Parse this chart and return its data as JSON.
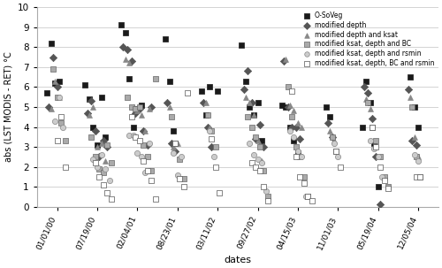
{
  "title": "",
  "xlabel": "dates",
  "ylabel": "abs (LST MODIS - RET) °C",
  "ylim": [
    0,
    10
  ],
  "xlim": [
    0,
    10
  ],
  "xtick_labels": [
    "01/01/00",
    "07/19/00",
    "02/04/01",
    "08/23/01",
    "03/11/02",
    "09/27/02",
    "04/15/03",
    "11/01/03",
    "05/19/04",
    "12/05/04"
  ],
  "xtick_positions": [
    0.5,
    1.5,
    2.5,
    3.5,
    4.5,
    5.5,
    6.5,
    7.5,
    8.5,
    9.5
  ],
  "ytick_positions": [
    0,
    1,
    2,
    3,
    4,
    5,
    6,
    7,
    8,
    9,
    10
  ],
  "series": [
    {
      "name": "O-SoVeg",
      "marker": "s",
      "color": "#1a1a1a",
      "edgecolor": "#1a1a1a",
      "size": 18,
      "data": [
        [
          0.25,
          5.7
        ],
        [
          0.35,
          8.2
        ],
        [
          0.45,
          6.2
        ],
        [
          0.55,
          6.3
        ],
        [
          1.2,
          6.1
        ],
        [
          1.3,
          5.4
        ],
        [
          1.4,
          4.0
        ],
        [
          1.5,
          3.1
        ],
        [
          1.6,
          5.5
        ],
        [
          1.7,
          3.5
        ],
        [
          2.1,
          9.1
        ],
        [
          2.2,
          8.7
        ],
        [
          2.3,
          6.4
        ],
        [
          2.4,
          4.0
        ],
        [
          2.5,
          4.9
        ],
        [
          2.6,
          5.1
        ],
        [
          3.2,
          8.4
        ],
        [
          3.3,
          6.3
        ],
        [
          3.4,
          3.8
        ],
        [
          4.1,
          5.8
        ],
        [
          4.2,
          4.6
        ],
        [
          4.3,
          6.0
        ],
        [
          4.5,
          5.8
        ],
        [
          5.1,
          8.1
        ],
        [
          5.2,
          6.3
        ],
        [
          5.3,
          5.0
        ],
        [
          5.4,
          4.6
        ],
        [
          5.5,
          5.2
        ],
        [
          5.6,
          3.3
        ],
        [
          6.1,
          5.1
        ],
        [
          6.2,
          5.0
        ],
        [
          6.3,
          4.0
        ],
        [
          6.4,
          3.3
        ],
        [
          6.5,
          2.7
        ],
        [
          7.2,
          5.0
        ],
        [
          7.3,
          4.5
        ],
        [
          8.1,
          4.0
        ],
        [
          8.2,
          6.3
        ],
        [
          8.3,
          5.2
        ],
        [
          8.4,
          3.2
        ],
        [
          8.5,
          1.0
        ],
        [
          9.3,
          6.5
        ],
        [
          9.4,
          5.0
        ],
        [
          9.5,
          4.0
        ]
      ]
    },
    {
      "name": "modified depth",
      "marker": "D",
      "color": "#555555",
      "edgecolor": "#555555",
      "size": 18,
      "data": [
        [
          0.3,
          5.0
        ],
        [
          0.4,
          7.5
        ],
        [
          0.5,
          6.0
        ],
        [
          1.25,
          4.7
        ],
        [
          1.35,
          5.3
        ],
        [
          1.45,
          3.8
        ],
        [
          1.55,
          2.5
        ],
        [
          1.65,
          3.3
        ],
        [
          1.75,
          3.0
        ],
        [
          2.15,
          8.0
        ],
        [
          2.25,
          7.9
        ],
        [
          2.35,
          7.3
        ],
        [
          2.45,
          4.7
        ],
        [
          2.55,
          4.9
        ],
        [
          2.65,
          3.8
        ],
        [
          2.75,
          3.1
        ],
        [
          2.85,
          5.0
        ],
        [
          3.25,
          5.2
        ],
        [
          3.35,
          3.2
        ],
        [
          3.45,
          2.8
        ],
        [
          4.15,
          5.2
        ],
        [
          4.25,
          4.0
        ],
        [
          4.35,
          3.0
        ],
        [
          5.15,
          5.9
        ],
        [
          5.25,
          6.8
        ],
        [
          5.35,
          5.2
        ],
        [
          5.45,
          3.4
        ],
        [
          5.55,
          4.1
        ],
        [
          5.65,
          3.0
        ],
        [
          6.15,
          7.3
        ],
        [
          6.25,
          5.0
        ],
        [
          6.35,
          4.0
        ],
        [
          6.45,
          4.0
        ],
        [
          6.55,
          3.4
        ],
        [
          7.25,
          4.2
        ],
        [
          7.35,
          3.5
        ],
        [
          8.15,
          6.0
        ],
        [
          8.25,
          5.7
        ],
        [
          8.35,
          4.4
        ],
        [
          8.45,
          2.5
        ],
        [
          8.55,
          0.1
        ],
        [
          9.25,
          5.9
        ],
        [
          9.35,
          3.3
        ],
        [
          9.45,
          3.1
        ]
      ]
    },
    {
      "name": "modified depth and ksat",
      "marker": "^",
      "color": "#888888",
      "edgecolor": "#888888",
      "size": 18,
      "data": [
        [
          0.35,
          4.9
        ],
        [
          0.45,
          6.3
        ],
        [
          0.55,
          5.5
        ],
        [
          1.3,
          4.6
        ],
        [
          1.4,
          5.0
        ],
        [
          1.5,
          3.0
        ],
        [
          1.6,
          3.2
        ],
        [
          1.7,
          2.3
        ],
        [
          2.2,
          7.4
        ],
        [
          2.3,
          7.2
        ],
        [
          2.4,
          5.0
        ],
        [
          2.5,
          4.8
        ],
        [
          2.6,
          4.6
        ],
        [
          2.7,
          3.8
        ],
        [
          2.8,
          4.9
        ],
        [
          3.3,
          5.0
        ],
        [
          3.4,
          3.0
        ],
        [
          3.5,
          3.2
        ],
        [
          4.2,
          5.2
        ],
        [
          4.3,
          4.0
        ],
        [
          5.2,
          5.5
        ],
        [
          5.3,
          5.2
        ],
        [
          5.4,
          4.6
        ],
        [
          5.5,
          3.3
        ],
        [
          5.6,
          2.3
        ],
        [
          6.2,
          7.4
        ],
        [
          6.3,
          5.1
        ],
        [
          6.4,
          4.8
        ],
        [
          6.5,
          4.2
        ],
        [
          6.6,
          4.0
        ],
        [
          7.3,
          3.8
        ],
        [
          7.4,
          3.3
        ],
        [
          8.2,
          5.4
        ],
        [
          8.3,
          4.9
        ],
        [
          8.4,
          3.0
        ],
        [
          8.5,
          2.5
        ],
        [
          9.3,
          5.5
        ],
        [
          9.4,
          3.5
        ],
        [
          9.5,
          2.5
        ]
      ]
    },
    {
      "name": "modified ksat, depth and BC",
      "marker": "s",
      "color": "#aaaaaa",
      "edgecolor": "#666666",
      "size": 22,
      "data": [
        [
          0.4,
          6.9
        ],
        [
          0.5,
          5.5
        ],
        [
          0.6,
          4.2
        ],
        [
          0.7,
          3.3
        ],
        [
          1.35,
          3.5
        ],
        [
          1.45,
          2.5
        ],
        [
          1.55,
          1.9
        ],
        [
          1.65,
          1.7
        ],
        [
          1.75,
          3.1
        ],
        [
          1.85,
          2.2
        ],
        [
          2.25,
          5.5
        ],
        [
          2.35,
          5.0
        ],
        [
          2.45,
          4.9
        ],
        [
          2.55,
          5.0
        ],
        [
          2.65,
          3.1
        ],
        [
          2.75,
          2.5
        ],
        [
          2.85,
          1.8
        ],
        [
          2.95,
          6.4
        ],
        [
          3.35,
          4.5
        ],
        [
          3.45,
          3.2
        ],
        [
          3.55,
          2.4
        ],
        [
          3.65,
          1.4
        ],
        [
          4.25,
          4.6
        ],
        [
          4.35,
          3.8
        ],
        [
          4.45,
          3.0
        ],
        [
          5.25,
          4.5
        ],
        [
          5.35,
          4.0
        ],
        [
          5.45,
          3.5
        ],
        [
          5.55,
          3.0
        ],
        [
          5.65,
          1.8
        ],
        [
          5.75,
          0.5
        ],
        [
          6.25,
          6.0
        ],
        [
          6.35,
          4.5
        ],
        [
          6.45,
          3.0
        ],
        [
          6.55,
          2.5
        ],
        [
          6.65,
          1.5
        ],
        [
          6.75,
          0.5
        ],
        [
          7.35,
          3.5
        ],
        [
          7.45,
          2.8
        ],
        [
          8.25,
          5.2
        ],
        [
          8.35,
          4.0
        ],
        [
          8.45,
          3.3
        ],
        [
          8.55,
          2.5
        ],
        [
          8.65,
          1.5
        ],
        [
          8.75,
          1.0
        ],
        [
          9.35,
          5.0
        ],
        [
          9.45,
          2.5
        ],
        [
          9.55,
          1.5
        ]
      ]
    },
    {
      "name": "modified ksat, depth and rsmin",
      "marker": "o",
      "color": "#cccccc",
      "edgecolor": "#888888",
      "size": 20,
      "data": [
        [
          0.45,
          4.3
        ],
        [
          0.55,
          5.5
        ],
        [
          0.65,
          4.0
        ],
        [
          1.4,
          2.4
        ],
        [
          1.5,
          2.0
        ],
        [
          1.6,
          2.6
        ],
        [
          1.7,
          1.9
        ],
        [
          1.8,
          1.3
        ],
        [
          2.3,
          3.6
        ],
        [
          2.4,
          3.6
        ],
        [
          2.5,
          2.7
        ],
        [
          2.6,
          2.5
        ],
        [
          2.7,
          1.7
        ],
        [
          2.8,
          3.2
        ],
        [
          3.4,
          2.7
        ],
        [
          3.5,
          1.6
        ],
        [
          3.6,
          2.5
        ],
        [
          4.3,
          3.8
        ],
        [
          4.4,
          2.5
        ],
        [
          5.3,
          3.2
        ],
        [
          5.4,
          2.6
        ],
        [
          5.5,
          2.4
        ],
        [
          5.6,
          2.2
        ],
        [
          5.7,
          0.8
        ],
        [
          6.3,
          3.8
        ],
        [
          6.4,
          3.5
        ],
        [
          6.5,
          2.8
        ],
        [
          6.6,
          2.5
        ],
        [
          6.7,
          0.5
        ],
        [
          7.4,
          3.2
        ],
        [
          7.5,
          2.5
        ],
        [
          8.3,
          3.3
        ],
        [
          8.4,
          2.9
        ],
        [
          8.5,
          2.5
        ],
        [
          8.6,
          1.5
        ],
        [
          9.4,
          2.6
        ],
        [
          9.5,
          2.3
        ]
      ]
    },
    {
      "name": "modified ksat, depth, BC and rsmin",
      "marker": "s",
      "color": "#ffffff",
      "edgecolor": "#555555",
      "size": 22,
      "data": [
        [
          0.5,
          3.3
        ],
        [
          0.6,
          4.5
        ],
        [
          0.7,
          2.0
        ],
        [
          1.45,
          2.2
        ],
        [
          1.55,
          1.5
        ],
        [
          1.65,
          1.1
        ],
        [
          1.75,
          0.7
        ],
        [
          1.85,
          0.4
        ],
        [
          2.35,
          4.5
        ],
        [
          2.45,
          3.5
        ],
        [
          2.55,
          3.3
        ],
        [
          2.65,
          2.3
        ],
        [
          2.75,
          1.8
        ],
        [
          2.85,
          1.3
        ],
        [
          2.95,
          0.4
        ],
        [
          3.45,
          3.2
        ],
        [
          3.55,
          1.4
        ],
        [
          3.65,
          1.0
        ],
        [
          3.75,
          5.7
        ],
        [
          4.35,
          3.4
        ],
        [
          4.45,
          2.0
        ],
        [
          4.55,
          0.7
        ],
        [
          5.35,
          2.2
        ],
        [
          5.45,
          2.0
        ],
        [
          5.55,
          1.8
        ],
        [
          5.65,
          1.0
        ],
        [
          5.75,
          0.3
        ],
        [
          6.35,
          5.8
        ],
        [
          6.45,
          2.5
        ],
        [
          6.55,
          1.5
        ],
        [
          6.65,
          1.2
        ],
        [
          6.75,
          0.5
        ],
        [
          6.85,
          0.3
        ],
        [
          7.45,
          2.8
        ],
        [
          7.55,
          2.0
        ],
        [
          8.35,
          4.0
        ],
        [
          8.45,
          3.0
        ],
        [
          8.55,
          2.0
        ],
        [
          8.65,
          1.3
        ],
        [
          8.75,
          0.9
        ],
        [
          9.45,
          1.5
        ],
        [
          9.55,
          1.5
        ]
      ]
    }
  ],
  "background_color": "#ffffff",
  "grid_color": "#cccccc",
  "legend_fontsize": 5.5,
  "xlabel_fontsize": 8,
  "ylabel_fontsize": 7,
  "xtick_fontsize": 6.5,
  "ytick_fontsize": 7.5,
  "figwidth": 5.0,
  "figheight": 3.03,
  "dpi": 100
}
